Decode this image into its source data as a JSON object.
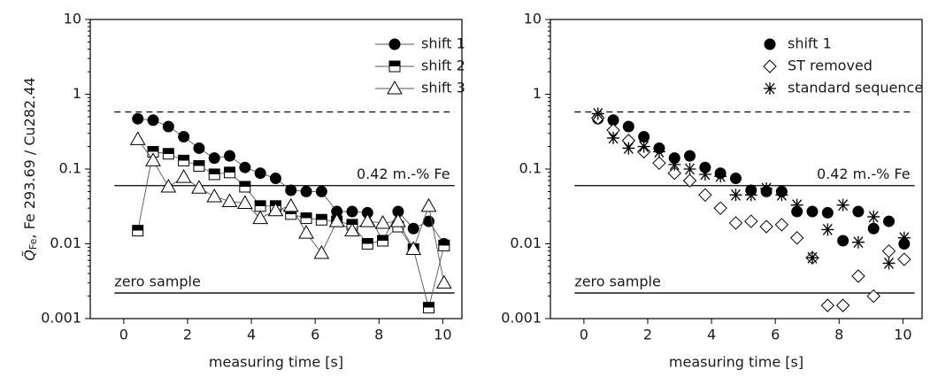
{
  "chart_data": [
    {
      "type": "line",
      "ylabel_symbol": "Q̃",
      "ylabel_sub": "Fe",
      "ylabel_rest": ", Fe 293.69 / Cu282.44",
      "xlabel": "measuring time [s]",
      "log_y": true,
      "legend": "upper right",
      "xlim": [
        -1.05,
        10.6
      ],
      "xticks": [
        0,
        2,
        4,
        6,
        8,
        10
      ],
      "ylim": [
        0.001,
        10
      ],
      "yticks": [
        10,
        1,
        0.1,
        0.01,
        0.001
      ],
      "x": [
        0.44,
        0.92,
        1.4,
        1.88,
        2.36,
        2.84,
        3.32,
        3.8,
        4.28,
        4.76,
        5.24,
        5.72,
        6.2,
        6.68,
        7.16,
        7.64,
        8.12,
        8.6,
        9.08,
        9.56,
        10.04
      ],
      "reference_lines": [
        {
          "value": 0.58,
          "style": "dashed"
        },
        {
          "value": 0.06,
          "label": "0.42 m.-% Fe",
          "style": "solid"
        },
        {
          "value": 0.0022,
          "label": "zero sample",
          "style": "solid"
        }
      ],
      "series": [
        {
          "name": "shift 1",
          "marker": "circle",
          "color": "#000000",
          "values": [
            0.47,
            0.45,
            0.37,
            0.27,
            0.19,
            0.14,
            0.15,
            0.105,
            0.088,
            0.075,
            0.052,
            0.05,
            0.05,
            0.027,
            0.027,
            0.026,
            0.011,
            0.027,
            0.016,
            0.02,
            0.01
          ]
        },
        {
          "name": "shift 2",
          "marker": "half-square",
          "color": "#000000",
          "values": [
            0.015,
            0.17,
            0.16,
            0.13,
            0.11,
            0.085,
            0.09,
            0.058,
            0.032,
            0.032,
            0.025,
            0.022,
            0.021,
            0.02,
            0.018,
            0.01,
            0.011,
            0.017,
            0.0085,
            0.0014,
            0.0095
          ]
        },
        {
          "name": "shift 3",
          "marker": "triangle",
          "color": "#000000",
          "values": [
            0.25,
            0.13,
            0.058,
            0.078,
            0.056,
            0.043,
            0.037,
            0.035,
            0.022,
            0.028,
            0.032,
            0.014,
            0.0075,
            0.02,
            0.015,
            0.02,
            0.019,
            0.02,
            0.0085,
            0.032,
            0.003
          ]
        }
      ]
    },
    {
      "type": "scatter",
      "xlabel": "measuring time [s]",
      "log_y": true,
      "legend": "upper right",
      "xlim": [
        -1.05,
        10.6
      ],
      "xticks": [
        0,
        2,
        4,
        6,
        8,
        10
      ],
      "ylim": [
        0.001,
        10
      ],
      "yticks": [
        10,
        1,
        0.1,
        0.01,
        0.001
      ],
      "x": [
        0.44,
        0.92,
        1.4,
        1.88,
        2.36,
        2.84,
        3.32,
        3.8,
        4.28,
        4.76,
        5.24,
        5.72,
        6.2,
        6.68,
        7.16,
        7.64,
        8.12,
        8.6,
        9.08,
        9.56,
        10.04
      ],
      "reference_lines": [
        {
          "value": 0.58,
          "style": "dashed"
        },
        {
          "value": 0.06,
          "label": "0.42 m.-% Fe",
          "style": "solid"
        },
        {
          "value": 0.0022,
          "label": "zero sample",
          "style": "solid"
        }
      ],
      "series": [
        {
          "name": "shift 1",
          "marker": "circle",
          "color": "#000000",
          "values": [
            0.47,
            0.45,
            0.37,
            0.27,
            0.19,
            0.14,
            0.15,
            0.105,
            0.088,
            0.075,
            0.052,
            0.05,
            0.05,
            0.027,
            0.027,
            0.026,
            0.011,
            0.027,
            0.016,
            0.02,
            0.01
          ]
        },
        {
          "name": "ST removed",
          "marker": "diamond",
          "color": "#000000",
          "values": [
            0.48,
            0.33,
            0.24,
            0.17,
            0.12,
            0.088,
            0.07,
            0.045,
            0.03,
            0.019,
            0.02,
            0.017,
            0.018,
            0.012,
            0.0065,
            0.0015,
            0.0015,
            0.0037,
            0.002,
            0.008,
            0.0062
          ]
        },
        {
          "name": "standard sequence",
          "marker": "asterisk",
          "color": "#000000",
          "values": [
            0.55,
            0.26,
            0.19,
            0.2,
            0.17,
            0.115,
            0.1,
            0.085,
            0.08,
            0.045,
            0.045,
            0.055,
            0.045,
            0.033,
            0.0065,
            0.0155,
            0.033,
            0.0105,
            0.023,
            0.0055,
            0.012
          ]
        }
      ]
    }
  ]
}
